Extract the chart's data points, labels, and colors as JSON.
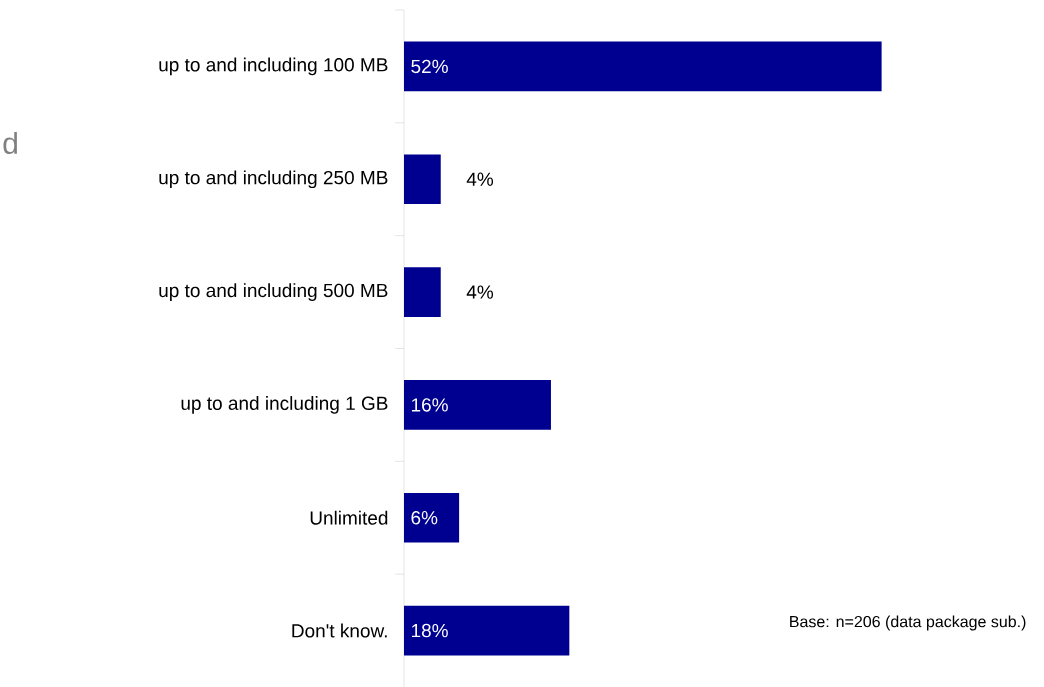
{
  "chart_data": {
    "type": "bar",
    "orientation": "horizontal",
    "categories": [
      "up to and including 100 MB",
      "up to and including 250 MB",
      "up to and including 500 MB",
      "up to and including 1 GB",
      "Unlimited",
      "Don't know."
    ],
    "values": [
      52,
      4,
      4,
      16,
      6,
      18
    ],
    "color": "#000090",
    "value_labels": [
      "52%",
      "4%",
      "4%",
      "16%",
      "6%",
      "18%"
    ],
    "annotations": [
      "d",
      "Base: n=206 (data package sub.)"
    ]
  }
}
